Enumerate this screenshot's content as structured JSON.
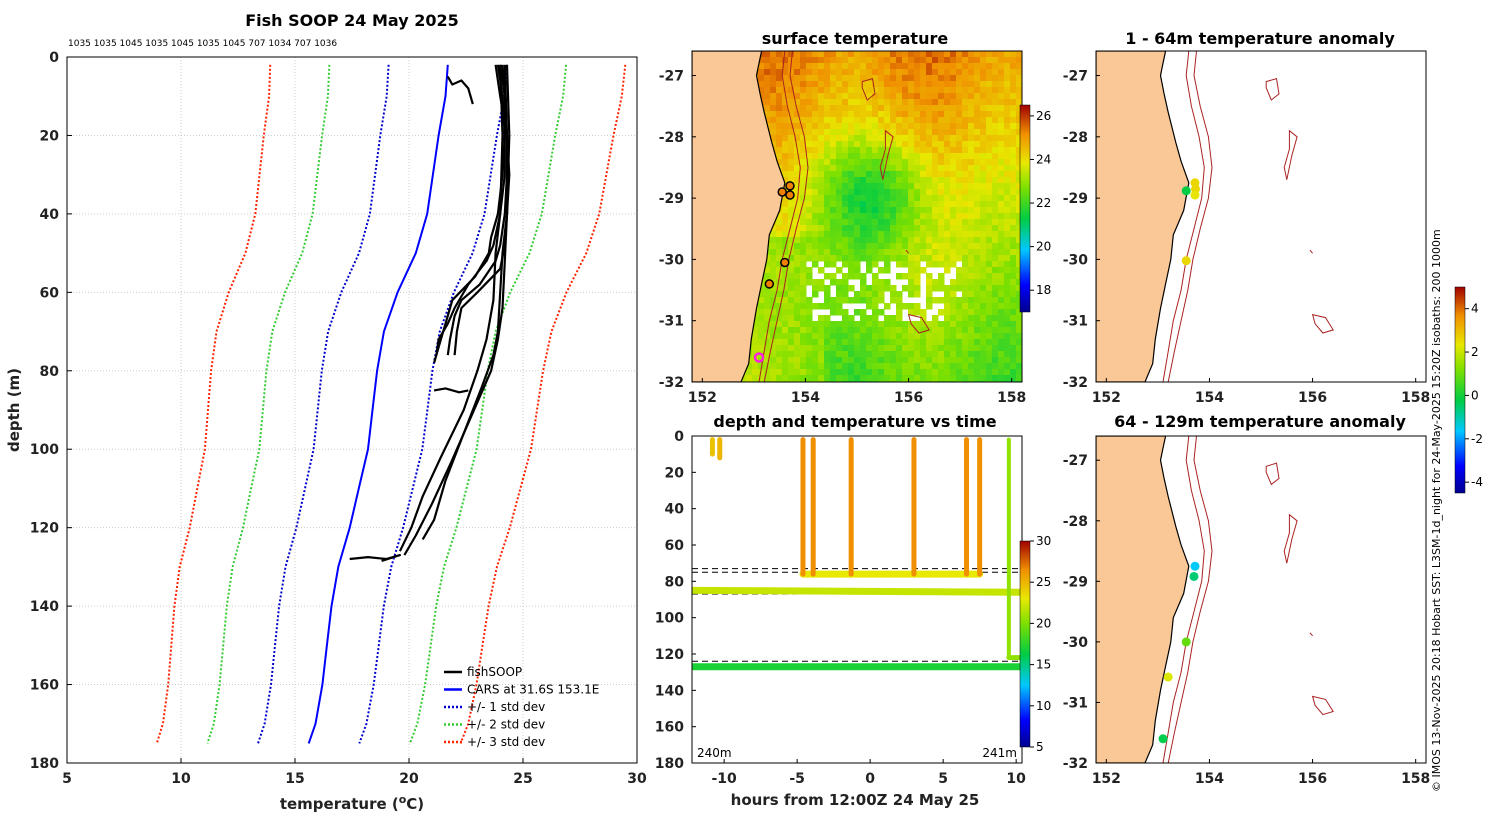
{
  "figure_title": "Fish SOOP 24 May 2025",
  "top_ids": "1035 1035 1045 1035 1045 1035 1045 707 1034 707 1036",
  "credit": "© IMOS 13-Nov-2025 20:18 Hobart SST: L3SM-1d_night for 24-May-2025 15:20Z isobaths: 200  1000m",
  "colors": {
    "fishsoop": "#000000",
    "cars": "#0000ff",
    "std1": "#0000cc",
    "std2": "#33cc33",
    "std3": "#ff2200",
    "land": "#f9c896",
    "isobath": "#aa2222"
  },
  "chart_data": [
    {
      "id": "profile",
      "type": "line",
      "title": "Fish SOOP 24 May 2025",
      "xlabel": "temperature (oC)",
      "ylabel": "depth (m)",
      "xlim": [
        5,
        30
      ],
      "ylim": [
        180,
        0
      ],
      "xticks": [
        5,
        10,
        15,
        20,
        25,
        30
      ],
      "yticks": [
        0,
        20,
        40,
        60,
        80,
        100,
        120,
        140,
        160,
        180
      ],
      "legend": [
        "fishSOOP",
        "CARS at 31.6S 153.1E",
        "+/- 1 std dev",
        "+/- 2 std dev",
        "+/- 3 std dev"
      ],
      "legend_position": "bottom-right",
      "cars": [
        [
          21.7,
          2
        ],
        [
          21.6,
          10
        ],
        [
          21.3,
          20
        ],
        [
          20.8,
          40
        ],
        [
          20.3,
          50
        ],
        [
          19.5,
          60
        ],
        [
          18.9,
          70
        ],
        [
          18.6,
          80
        ],
        [
          18.4,
          90
        ],
        [
          18.2,
          100
        ],
        [
          17.8,
          110
        ],
        [
          17.4,
          120
        ],
        [
          16.9,
          130
        ],
        [
          16.6,
          140
        ],
        [
          16.4,
          150
        ],
        [
          16.2,
          160
        ],
        [
          15.9,
          170
        ],
        [
          15.6,
          175
        ]
      ],
      "std_offsets": [
        2.6,
        5.2,
        7.8
      ],
      "fishsoop": [
        [
          [
            23.9,
            2
          ],
          [
            24.1,
            10
          ],
          [
            24.2,
            20
          ],
          [
            24.2,
            30
          ],
          [
            24.0,
            40
          ],
          [
            23.7,
            48
          ],
          [
            23.4,
            52
          ],
          [
            22.6,
            58
          ],
          [
            22.0,
            64
          ],
          [
            21.7,
            68
          ],
          [
            21.3,
            72
          ],
          [
            21.2,
            76
          ]
        ],
        [
          [
            24.0,
            2
          ],
          [
            24.2,
            10
          ],
          [
            24.3,
            20
          ],
          [
            24.3,
            30
          ],
          [
            24.2,
            40
          ],
          [
            24.0,
            48
          ],
          [
            23.8,
            52
          ],
          [
            23.1,
            58
          ],
          [
            22.3,
            62
          ],
          [
            22.0,
            66
          ],
          [
            21.8,
            72
          ],
          [
            21.7,
            76
          ]
        ],
        [
          [
            24.1,
            2
          ],
          [
            24.2,
            10
          ],
          [
            24.2,
            20
          ],
          [
            24.1,
            30
          ],
          [
            23.9,
            40
          ],
          [
            23.6,
            46
          ],
          [
            23.5,
            50
          ],
          [
            22.9,
            56
          ],
          [
            21.9,
            62
          ],
          [
            21.6,
            68
          ],
          [
            21.3,
            74
          ],
          [
            21.1,
            78
          ]
        ],
        [
          [
            23.8,
            2
          ],
          [
            24.0,
            10
          ],
          [
            24.3,
            20
          ],
          [
            24.4,
            30
          ],
          [
            24.3,
            40
          ],
          [
            24.2,
            48
          ],
          [
            24.0,
            54
          ],
          [
            23.0,
            60
          ],
          [
            22.3,
            64
          ],
          [
            22.1,
            70
          ],
          [
            22.0,
            76
          ]
        ],
        [
          [
            24.2,
            2
          ],
          [
            24.3,
            20
          ],
          [
            24.3,
            40
          ],
          [
            24.1,
            50
          ],
          [
            24.0,
            60
          ],
          [
            23.9,
            70
          ],
          [
            23.7,
            76
          ],
          [
            23.2,
            84
          ],
          [
            22.4,
            96
          ],
          [
            21.6,
            108
          ],
          [
            21.1,
            118
          ],
          [
            20.6,
            123
          ]
        ],
        [
          [
            24.0,
            2
          ],
          [
            24.1,
            20
          ],
          [
            24.0,
            40
          ],
          [
            23.8,
            50
          ],
          [
            23.7,
            62
          ],
          [
            23.4,
            72
          ],
          [
            23.0,
            80
          ],
          [
            22.4,
            90
          ],
          [
            21.4,
            102
          ],
          [
            20.6,
            112
          ],
          [
            20.1,
            120
          ],
          [
            19.6,
            126
          ]
        ],
        [
          [
            24.3,
            2
          ],
          [
            24.4,
            20
          ],
          [
            24.3,
            40
          ],
          [
            24.2,
            52
          ],
          [
            24.1,
            64
          ],
          [
            23.9,
            72
          ],
          [
            23.6,
            80
          ],
          [
            22.7,
            92
          ],
          [
            21.8,
            104
          ],
          [
            21.0,
            114
          ],
          [
            20.3,
            122
          ],
          [
            19.8,
            127
          ]
        ],
        [
          [
            21.7,
            5
          ],
          [
            21.9,
            7
          ],
          [
            22.3,
            6
          ],
          [
            22.6,
            8
          ],
          [
            22.8,
            12
          ]
        ],
        [
          [
            17.4,
            128
          ],
          [
            18.2,
            127.5
          ],
          [
            19.0,
            128
          ],
          [
            19.6,
            127
          ],
          [
            18.8,
            128.5
          ]
        ],
        [
          [
            21.1,
            85
          ],
          [
            21.6,
            84.5
          ],
          [
            22.2,
            85.5
          ],
          [
            22.6,
            85
          ]
        ]
      ]
    },
    {
      "id": "sst_map",
      "type": "heatmap",
      "title": "surface temperature",
      "xlim": [
        151.8,
        158.2
      ],
      "ylim": [
        -32,
        -26.6
      ],
      "xticks": [
        152,
        154,
        156,
        158
      ],
      "yticks": [
        -27,
        -28,
        -29,
        -30,
        -31,
        -32
      ],
      "colorbar": {
        "ticks": [
          18,
          20,
          22,
          24,
          26
        ],
        "range": [
          17,
          26.5
        ]
      },
      "markers": [
        [
          153.7,
          -28.8
        ],
        [
          153.7,
          -28.95
        ],
        [
          153.55,
          -28.9
        ],
        [
          153.6,
          -30.05
        ],
        [
          153.3,
          -30.4
        ],
        [
          153.1,
          -31.6
        ]
      ]
    },
    {
      "id": "depth_time",
      "type": "scatter",
      "title": "depth and temperature vs time",
      "xlabel": "hours from 12:00Z 24 May 25",
      "xlim": [
        -12.2,
        10.4
      ],
      "ylim": [
        180,
        0
      ],
      "xticks": [
        -10,
        -5,
        0,
        5,
        10
      ],
      "yticks": [
        0,
        20,
        40,
        60,
        80,
        100,
        120,
        140,
        160,
        180
      ],
      "colorbar": {
        "ticks": [
          5,
          10,
          15,
          20,
          25,
          30
        ],
        "range": [
          5,
          30
        ]
      },
      "annotations": [
        "240m",
        "241m"
      ],
      "ref_depths": [
        73,
        75,
        87,
        124
      ]
    },
    {
      "id": "anom_1_64",
      "type": "scatter",
      "title": "1 - 64m temperature anomaly",
      "xlim": [
        151.8,
        158.2
      ],
      "ylim": [
        -32,
        -26.6
      ],
      "xticks": [
        152,
        154,
        156,
        158
      ],
      "yticks": [
        -27,
        -28,
        -29,
        -30,
        -31,
        -32
      ],
      "points": [
        [
          153.55,
          -28.88,
          -0.2
        ],
        [
          153.72,
          -28.75,
          2.6
        ],
        [
          153.73,
          -28.85,
          2.6
        ],
        [
          153.72,
          -28.95,
          2.4
        ],
        [
          153.55,
          -30.02,
          2.6
        ]
      ]
    },
    {
      "id": "anom_64_129",
      "type": "scatter",
      "title": "64 - 129m temperature anomaly",
      "xlim": [
        151.8,
        158.2
      ],
      "ylim": [
        -32,
        -26.6
      ],
      "xticks": [
        152,
        154,
        156,
        158
      ],
      "yticks": [
        -27,
        -28,
        -29,
        -30,
        -31,
        -32
      ],
      "points": [
        [
          153.72,
          -28.75,
          -1.6
        ],
        [
          153.7,
          -28.92,
          -0.6
        ],
        [
          153.55,
          -30.0,
          0.9
        ],
        [
          153.2,
          -30.58,
          2.2
        ],
        [
          153.1,
          -31.6,
          -0.3
        ]
      ]
    },
    {
      "id": "anom_colorbar",
      "type": "colorbar",
      "ticks": [
        -4,
        -2,
        0,
        2,
        4
      ],
      "range": [
        -4.5,
        5
      ]
    }
  ]
}
